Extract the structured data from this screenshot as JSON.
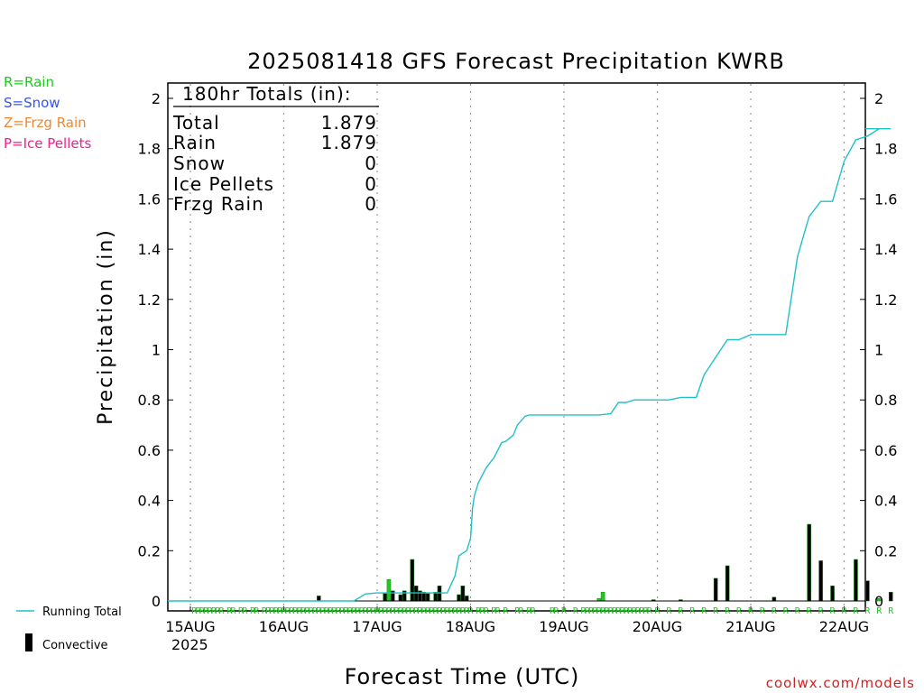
{
  "chart_data": {
    "type": "bar",
    "title": "2025081418 GFS Forecast Precipitation KWRB",
    "xlabel": "Forecast Time (UTC)",
    "ylabel": "Precipitation (in)",
    "ylim": [
      0,
      2.05
    ],
    "y_ticks": [
      "0",
      "0.2",
      "0.4",
      "0.6",
      "0.8",
      "1",
      "1.2",
      "1.4",
      "1.6",
      "1.8",
      "2"
    ],
    "x_ticks": [
      "15AUG",
      "16AUG",
      "17AUG",
      "18AUG",
      "19AUG",
      "20AUG",
      "21AUG",
      "22AUG"
    ],
    "x_year": "2025",
    "grid": "dotted vertical at day boundaries",
    "legend_top_left": [
      {
        "text": "R=Rain",
        "color": "#22c722"
      },
      {
        "text": "S=Snow",
        "color": "#3355ee"
      },
      {
        "text": "Z=Frzg Rain",
        "color": "#ee8833"
      },
      {
        "text": "P=Ice Pellets",
        "color": "#ee2288"
      }
    ],
    "legend_bottom_left": [
      {
        "text": "Running Total",
        "color": "#20c0c8"
      },
      {
        "text": "Convective",
        "color": "#000000"
      }
    ],
    "totals": {
      "header": "180hr Totals (in):",
      "rows": [
        {
          "label": "Total",
          "value": "1.879"
        },
        {
          "label": "Rain",
          "value": "1.879"
        },
        {
          "label": "Snow",
          "value": "0"
        },
        {
          "label": "Ice Pellets",
          "value": "0"
        },
        {
          "label": "Frzg Rain",
          "value": "0"
        }
      ]
    },
    "series": [
      {
        "name": "Running Total",
        "color": "#20c0c8",
        "x_hours": [
          0,
          42,
          45,
          48,
          54,
          66,
          68,
          69,
          70,
          71,
          72,
          72.5,
          73,
          74,
          75,
          76,
          78,
          80,
          81,
          83,
          84,
          86,
          87,
          88,
          89,
          90,
          92,
          96,
          102,
          105,
          108,
          110,
          112,
          114,
          120,
          123,
          126,
          129,
          130,
          132,
          138,
          141,
          144,
          153,
          156,
          159,
          162,
          164,
          165,
          168,
          171,
          174,
          177,
          180
        ],
        "values": [
          0.0,
          0.0,
          0.028,
          0.032,
          0.032,
          0.032,
          0.1,
          0.18,
          0.19,
          0.2,
          0.25,
          0.37,
          0.42,
          0.47,
          0.5,
          0.53,
          0.57,
          0.63,
          0.635,
          0.66,
          0.7,
          0.735,
          0.74,
          0.74,
          0.74,
          0.74,
          0.74,
          0.74,
          0.74,
          0.74,
          0.745,
          0.79,
          0.79,
          0.8,
          0.8,
          0.8,
          0.81,
          0.81,
          0.81,
          0.9,
          1.04,
          1.04,
          1.06,
          1.06,
          1.37,
          1.53,
          1.59,
          1.59,
          1.59,
          1.75,
          1.835,
          1.85,
          1.879,
          1.879
        ]
      },
      {
        "name": "Precipitation",
        "bars": [
          {
            "h": 33,
            "v": 0.02,
            "c": "black"
          },
          {
            "h": 50,
            "v": 0.03,
            "c": "black"
          },
          {
            "h": 51,
            "v": 0.085,
            "c": "green"
          },
          {
            "h": 52,
            "v": 0.04,
            "c": "black"
          },
          {
            "h": 54,
            "v": 0.025,
            "c": "black"
          },
          {
            "h": 55,
            "v": 0.04,
            "c": "black"
          },
          {
            "h": 57,
            "v": 0.165,
            "c": "black"
          },
          {
            "h": 58,
            "v": 0.06,
            "c": "black"
          },
          {
            "h": 59,
            "v": 0.04,
            "c": "black"
          },
          {
            "h": 60,
            "v": 0.035,
            "c": "black"
          },
          {
            "h": 61,
            "v": 0.03,
            "c": "black"
          },
          {
            "h": 63,
            "v": 0.035,
            "c": "black"
          },
          {
            "h": 64,
            "v": 0.06,
            "c": "black"
          },
          {
            "h": 69,
            "v": 0.025,
            "c": "black"
          },
          {
            "h": 70,
            "v": 0.06,
            "c": "black"
          },
          {
            "h": 71,
            "v": 0.02,
            "c": "black"
          },
          {
            "h": 105,
            "v": 0.01,
            "c": "green"
          },
          {
            "h": 106,
            "v": 0.035,
            "c": "green"
          },
          {
            "h": 119,
            "v": 0.005,
            "c": "black"
          },
          {
            "h": 126,
            "v": 0.005,
            "c": "black"
          },
          {
            "h": 135,
            "v": 0.09,
            "c": "black"
          },
          {
            "h": 138,
            "v": 0.14,
            "c": "black"
          },
          {
            "h": 150,
            "v": 0.015,
            "c": "black"
          },
          {
            "h": 159,
            "v": 0.305,
            "c": "black"
          },
          {
            "h": 162,
            "v": 0.16,
            "c": "black"
          },
          {
            "h": 165,
            "v": 0.06,
            "c": "black"
          },
          {
            "h": 171,
            "v": 0.165,
            "c": "black"
          },
          {
            "h": 174,
            "v": 0.08,
            "c": "black"
          },
          {
            "h": 177,
            "v": 0.01,
            "c": "green"
          },
          {
            "h": 180,
            "v": 0.035,
            "c": "black"
          }
        ]
      }
    ],
    "precip_type_marker": "R",
    "precip_type_hours": [
      1,
      2,
      3,
      4,
      5,
      6,
      7,
      8,
      10,
      11,
      13,
      14,
      16,
      17,
      19,
      20,
      21,
      22,
      23,
      24,
      25,
      26,
      27,
      28,
      29,
      30,
      31,
      32,
      33,
      34,
      35,
      36,
      37,
      38,
      39,
      40,
      41,
      42,
      43,
      44,
      45,
      46,
      47,
      48,
      49,
      50,
      51,
      52,
      53,
      54,
      55,
      56,
      57,
      58,
      59,
      60,
      61,
      62,
      63,
      64,
      65,
      66,
      67,
      68,
      69,
      70,
      71,
      72,
      74,
      75,
      76,
      78,
      79,
      81,
      84,
      85,
      87,
      88,
      93,
      94,
      96,
      99,
      101,
      102,
      103,
      104,
      105,
      106,
      107,
      108,
      109,
      110,
      111,
      112,
      113,
      114,
      115,
      116,
      117,
      118,
      120,
      123,
      126,
      129,
      132,
      135,
      138,
      141,
      144,
      147,
      150,
      153,
      156,
      159,
      162,
      165,
      168,
      171,
      174,
      177,
      180
    ],
    "branding": "coolwx.com/models"
  }
}
